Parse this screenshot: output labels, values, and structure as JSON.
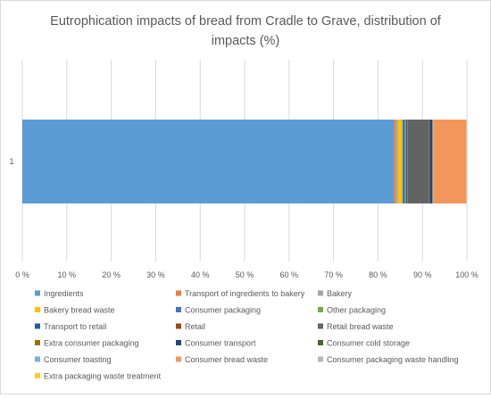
{
  "chart_data": {
    "type": "bar",
    "orientation": "horizontal",
    "stacked": true,
    "percent_stacked": true,
    "title_line1": "Eutrophication impacts of bread from Cradle to Grave, distribution of",
    "title_line2": "impacts (%)",
    "categories": [
      "1"
    ],
    "xlim": [
      0,
      100
    ],
    "x_ticks": [
      "0 %",
      "10 %",
      "20 %",
      "30 %",
      "40 %",
      "50 %",
      "60 %",
      "70 %",
      "80 %",
      "90 %",
      "100 %"
    ],
    "grid": true,
    "legend_position": "bottom",
    "series": [
      {
        "name": "Ingredients",
        "values": [
          83.6
        ],
        "color": "#5b9bd5"
      },
      {
        "name": "Transport of ingredients to bakery",
        "values": [
          0.4
        ],
        "color": "#ed7d31"
      },
      {
        "name": "Bakery",
        "values": [
          0.5
        ],
        "color": "#a5a5a5"
      },
      {
        "name": "Bakery bread waste",
        "values": [
          1.0
        ],
        "color": "#ffc000"
      },
      {
        "name": "Consumer packaging",
        "values": [
          0.6
        ],
        "color": "#4472c4"
      },
      {
        "name": "Other packaging",
        "values": [
          0.2
        ],
        "color": "#70ad47"
      },
      {
        "name": "Transport to retail",
        "values": [
          0.3
        ],
        "color": "#255e91"
      },
      {
        "name": "Retail",
        "values": [
          0.1
        ],
        "color": "#9e480e"
      },
      {
        "name": "Retail bread waste",
        "values": [
          4.8
        ],
        "color": "#636363"
      },
      {
        "name": "Extra consumer packaging",
        "values": [
          0.1
        ],
        "color": "#997300"
      },
      {
        "name": "Consumer transport",
        "values": [
          0.6
        ],
        "color": "#264478"
      },
      {
        "name": "Consumer cold storage",
        "values": [
          0.1
        ],
        "color": "#43682b"
      },
      {
        "name": "Consumer toasting",
        "values": [
          0.1
        ],
        "color": "#7cafdd"
      },
      {
        "name": "Consumer bread waste",
        "values": [
          7.4
        ],
        "color": "#f1975a"
      },
      {
        "name": "Consumer packaging waste handling",
        "values": [
          0.1
        ],
        "color": "#b7b7b7"
      },
      {
        "name": "Extra packaging waste treatment",
        "values": [
          0.1
        ],
        "color": "#ffcd33"
      }
    ]
  }
}
